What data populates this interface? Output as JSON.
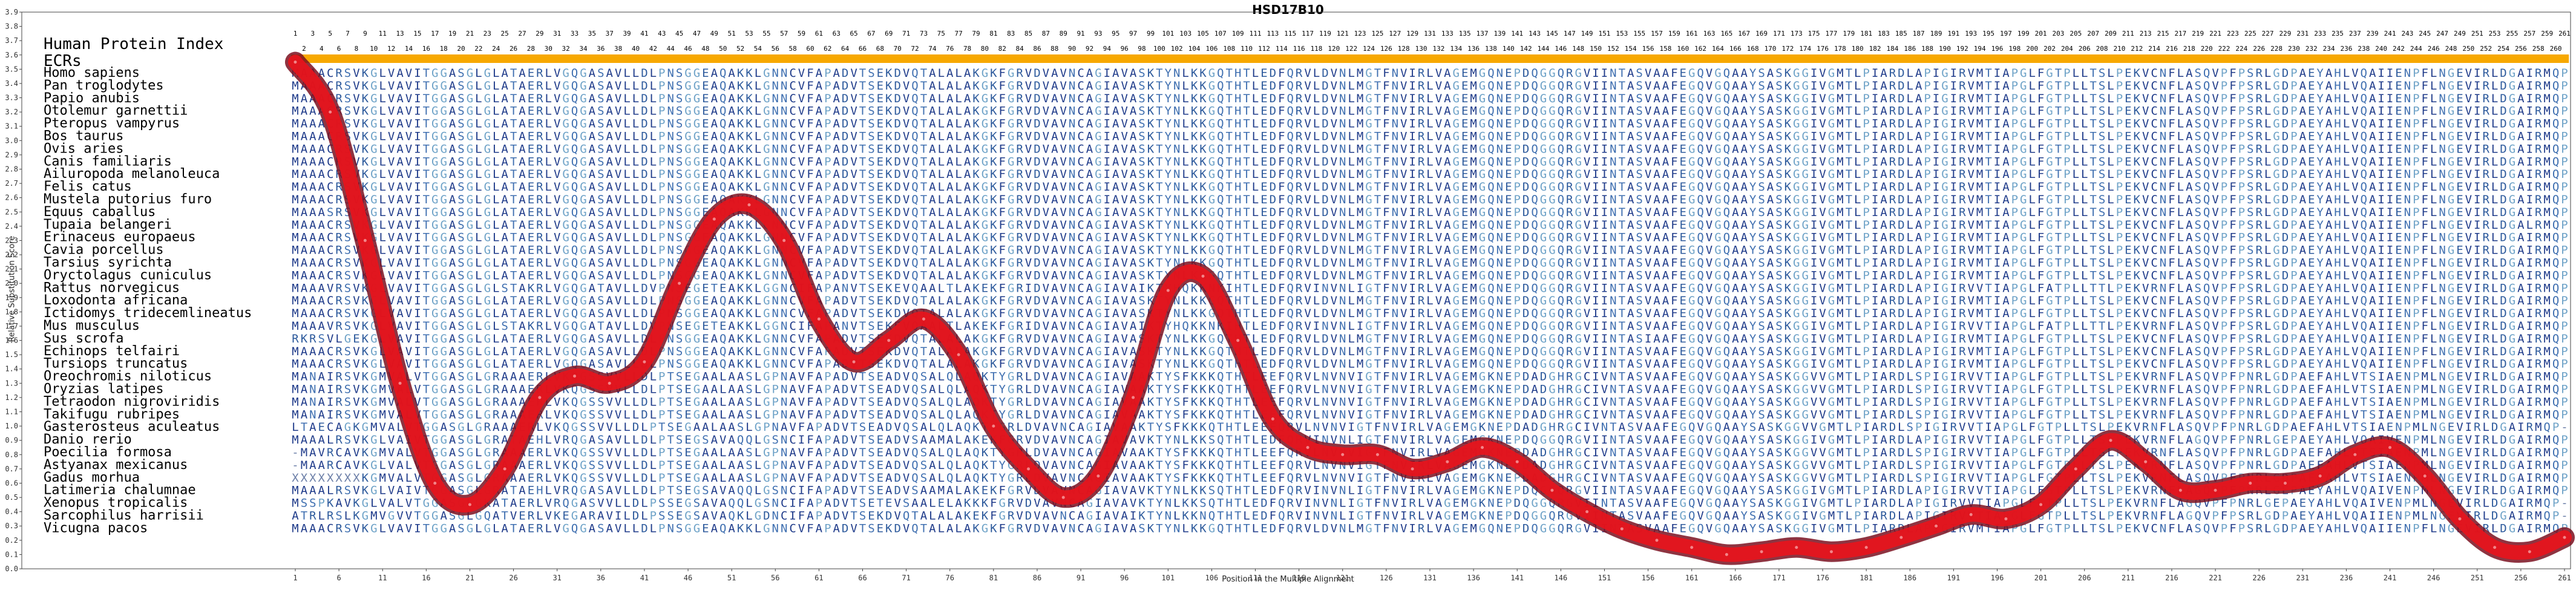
{
  "chart_data": {
    "type": "line",
    "title": "HSD17B10",
    "xlabel": "Position in the Multiple Alignment",
    "ylabel": "Relative Substitution Score",
    "xlim": [
      1,
      261
    ],
    "ylim": [
      0,
      3.9
    ],
    "yticks": [
      0.0,
      0.1,
      0.2,
      0.3,
      0.4,
      0.5,
      0.6,
      0.7,
      0.8,
      0.9,
      1.0,
      1.1,
      1.2,
      1.3,
      1.4,
      1.5,
      1.6,
      1.7,
      1.8,
      1.9,
      2.0,
      2.1,
      2.2,
      2.3,
      2.4,
      2.5,
      2.6,
      2.7,
      2.8,
      2.9,
      3.0,
      3.1,
      3.2,
      3.3,
      3.4,
      3.5,
      3.6,
      3.7,
      3.8,
      3.9
    ],
    "xticks": [
      1,
      6,
      11,
      16,
      21,
      26,
      31,
      36,
      41,
      46,
      51,
      56,
      61,
      66,
      71,
      76,
      81,
      86,
      91,
      96,
      101,
      106,
      111,
      116,
      121,
      126,
      131,
      136,
      141,
      146,
      151,
      156,
      161,
      166,
      171,
      176,
      181,
      186,
      191,
      196,
      201,
      206,
      211,
      216,
      221,
      226,
      231,
      236,
      241,
      246,
      251,
      256,
      261
    ],
    "series": [
      {
        "color": "#e8141c",
        "x": [
          1,
          5,
          9,
          13,
          17,
          21,
          25,
          29,
          33,
          37,
          41,
          45,
          49,
          53,
          57,
          61,
          65,
          69,
          73,
          77,
          81,
          85,
          89,
          93,
          97,
          101,
          105,
          109,
          113,
          117,
          121,
          125,
          129,
          133,
          137,
          141,
          145,
          149,
          153,
          157,
          161,
          165,
          169,
          173,
          177,
          181,
          185,
          189,
          193,
          197,
          201,
          205,
          209,
          213,
          217,
          221,
          225,
          229,
          233,
          237,
          241,
          245,
          249,
          253,
          257,
          261
        ],
        "y": [
          3.55,
          3.2,
          2.3,
          1.3,
          0.6,
          0.45,
          0.7,
          1.2,
          1.35,
          1.3,
          1.45,
          2.0,
          2.45,
          2.55,
          2.3,
          1.75,
          1.45,
          1.6,
          1.75,
          1.5,
          1.0,
          0.7,
          0.5,
          0.65,
          1.2,
          1.95,
          2.05,
          1.6,
          1.05,
          0.85,
          0.8,
          0.8,
          0.7,
          0.75,
          0.85,
          0.75,
          0.55,
          0.4,
          0.28,
          0.2,
          0.15,
          0.1,
          0.12,
          0.15,
          0.12,
          0.15,
          0.22,
          0.3,
          0.38,
          0.35,
          0.45,
          0.7,
          0.9,
          0.75,
          0.55,
          0.55,
          0.6,
          0.6,
          0.65,
          0.8,
          0.85,
          0.65,
          0.35,
          0.15,
          0.12,
          0.22
        ]
      }
    ]
  },
  "track_labels": {
    "hpi": "Human Protein Index",
    "ecrs": "ECRs"
  },
  "species": [
    "Homo sapiens",
    "Pan troglodytes",
    "Papio anubis",
    "Otolemur garnettii",
    "Pteropus vampyrus",
    "Bos taurus",
    "Ovis aries",
    "Canis familiaris",
    "Ailuropoda melanoleuca",
    "Felis catus",
    "Mustela putorius furo",
    "Equus caballus",
    "Tupaia belangeri",
    "Erinaceus europaeus",
    "Cavia porcellus",
    "Tarsius syrichta",
    "Oryctolagus cuniculus",
    "Rattus norvegicus",
    "Loxodonta africana",
    "Ictidomys tridecemlineatus",
    "Mus musculus",
    "Sus scrofa",
    "Echinops telfairi",
    "Tursiops truncatus",
    "Oreochromis niloticus",
    "Oryzias latipes",
    "Tetraodon nigroviridis",
    "Takifugu rubripes",
    "Gasterosteus aculeatus",
    "Danio rerio",
    "Poecilia formosa",
    "Astyanax mexicanus",
    "Gadus morhua",
    "Latimeria chalumnae",
    "Xenopus tropicalis",
    "Sarcophilus harrisii",
    "Vicugna pacos"
  ],
  "sequences": [
    "MAAACRSVKGLVAVITGGASGLGLATAERLVGQGASAVLLDLPNSGGEAQAKKLGNNCVFAPADVTSEKDVQTALALAKGKFGRVDVAVNCAGIAVASKTYNLKKGQTHTLEDFQRVLDVNLMGTFNVIRLVAGEMGQNEPDQGGQRGVIINTASVAAFEGQVGQAAYSASKGGIVGMTLPIARDLAPIGIRVMTIAPGLFGTPLLTSLPEKVCNFLASQVPFPSRLGDPAEYAHLVQAIIENPFLNGEVIRLDGAIRMQP",
    "MAAACRSVKGLVAVITGGASGLGLATAERLVGQGASAVLLDLPNSGGEAQAKKLGNNCVFAPADVTSEKDVQTALALAKGKFGRVDVAVNCAGIAVASKTYNLKKGQTHTLEDFQRVLDVNLMGTFNVIRLVAGEMGQNEPDQGGQRGVIINTASVAAFEGQVGQAAYSASKGGIVGMTLPIARDLAPIGIRVMTIAPGLFGTPLLTSLPEKVCNFLASQVPFPSRLGDPAEYAHLVQAIIENPFLNGEVIRLDGAIRMQP",
    "MAAACRSVKGLVAVITGGASGLGLATAERLVGQGASAVLLDLPNSGGEAQAKKLGNNCVFAPADVTSEKDVQTALALAKGKFGRVDVAVNCAGIAVASKTYNLKKGQTHTLEDFQRVLDVNLMGTFNVIRLVAGEMGQNEPDQGGQRGVIINTASVAAFEGQVGQAAYSASKGGIVGMTLPIARDLAPIGIRVMTIAPGLFGTPLLTSLPEKVCNFLASQVPFPSRLGDPAEYAHLVQAIIENPFLNGEVIRLDGAIRMQP",
    "MAAACRSVKGLVAVITGGASGLGLATAERLVGQGASAVLLDLPNSGGEAQAKKLGNNCVFAPADVTSEKDVQTALALAKGKFGRVDVAVNCAGIAVASKTYNLKKGQTHTLEDFQRVLDVNLMGTFNVIRLVAGEMGQNEPDQGGQRGVIINTASVAAFEGQVGQAAYSASKGGIVGMTLPIARDLAPIGIRVMTIAPGLFGTPLLTSLPEKVCNFLASQVPFPSRLGDPAEYAHLVQAIIENPFLNGEVIRLDGAIRMQP",
    "MAAACRSVKGLVAVITGGASGLGLATAERLVGQGASAVLLDLPNSGGEAQAKKLGNNCVFAPADVTSEKDVQTALALAKGKFGRVDVAVNCAGIAVASKTYNLKKGQTHTLEDFQRVLDVNLMGTFNVIRLVAGEMGQNEPDQGGQRGVIINTASVAAFEGQVGQAAYSASKGGIVGMTLPIARDLAPIGIRVMTIAPGLFGTPLLTSLPEKVCNFLASQVPFPSRLGDPAEYAHLVQAIIENPFLNGEVIRLDGAIRMQP",
    "MAAACRSVKGLVAVITGGASGLGLATAERLVGQGASAVLLDLPNSGGEAQAKKLGNNCVFAPADVTSEKDVQTALALAKGKFGRVDVAVNCAGIAVASKTYNLKKGQTHTLEDFQRVLDVNLMGTFNVIRLVAGEMGQNEPDQGGQRGVIINTASVAAFEGQVGQAAYSASKGGIVGMTLPIARDLAPIGIRVMTIAPGLFGTPLLTSLPEKVCNFLASQVPFPSRLGDPAEYAHLVQAIIENPFLNGEVIRLDGAIRMQP",
    "MAAACRSVKGLVAVITGGASGLGLATAERLVGQGASAVLLDLPNSGGEAQAKKLGNNCVFAPADVTSEKDVQTALALAKGKFGRVDVAVNCAGIAVASKTYNLKKGQTHTLEDFQRVLDVNLMGTFNVIRLVAGEMGQNEPDQGGQRGVIINTASVAAFEGQVGQAAYSASKGGIVGMTLPIARDLAPIGIRVMTIAPGLFGTPLLTSLPEKVCNFLASQVPFPSRLGDPAEYAHLVQAIIENPFLNGEVIRLDGAIRMQP",
    "MAAACRSVKGLVAVITGGASGLGLATAERLVGQGASAVLLDLPNSGGEAQAKKLGNNCVFAPADVTSEKDVQTALALAKGKFGRVDVAVNCAGIAVASKTYNLKKGQTHTLEDFQRVLDVNLMGTFNVIRLVAGEMGQNEPDQGGQRGVIINTASVAAFEGQVGQAAYSASKGGIVGMTLPIARDLAPIGIRVMTIAPGLFGTPLLTSLPEKVCNFLASQVPFPSRLGDPAEYAHLVQAIIENPFLNGEVIRLDGAIRMQP",
    "MAAACRSVKGLVAVITGGASGLGLATAERLVGQGASAVLLDLPNSGGEAQAKKLGNNCVFAPADVTSEKDVQTALALAKGKFGRVDVAVNCAGIAVASKTYNLKKGQTHTLEDFQRVLDVNLMGTFNVIRLVAGEMGQNEPDQGGQRGVIINTASVAAFEGQVGQAAYSASKGGIVGMTLPIARDLAPIGIRVMTIAPGLFGTPLLTSLPEKVCNFLASQVPFPSRLGDPAEYAHLVQAIIENPFLNGEVIRLDGAIRMQP",
    "MAAACRSVKGLVAVITGGASGLGLATAERLVGQGASAVLLDLPNSGGEAQAKKLGNNCVFAPADVTSEKDVQTALALAKGKFGRVDVAVNCAGIAVASKTYNLKKGQTHTLEDFQRVLDVNLMGTFNVIRLVAGEMGQNEPDQGGQRGVIINTASVAAFEGQVGQAAYSASKGGIVGMTLPIARDLAPIGIRVMTIAPGLFGTPLLTSLPEKVCNFLASQVPFPSRLGDPAEYAHLVQAIIENPFLNGEVIRLDGAIRMQP",
    "MAAACRSVKGLVAVITGGASGLGLATAERLVGQGASAVLLDLPNSGGEAQAKKLGNNCVFAPADVTSEKDVQTALALAKGKFGRVDVAVNCAGIAVASKTYNLKKGQTHTLEDFQRVLDVNLMGTFNVIRLVAGEMGQNEPDQGGQRGVIINTASVAAFEGQVGQAAYSASKGGIVGMTLPIARDLAPIGIRVMTIAPGLFGTPLLTSLPEKVCNFLASQVPFPSRLGDPAEYAHLVQAIIENPFLNGEVIRLDGAIRMQP",
    "MAAASRSVKGLVAVITGGASGLGLATAERLVGQGASAVLLDLPNSGGEAQAKKLGNNCVFAPADVTSEKDVQTALALAKGKFGRVDVAVNCAGIAVASKTYNLKKGQTHTLEDFQRVLDVNLMGTFNVIRLVAGEMGQNEPDQGGQRGVIINTASVAAFEGQVGQAAYSASKGGIVGMTLPIARDLAPIGIRVMTIAPGLFGTPLLTSLPEKVCNFLASQVPFPSRLGDPAEYAHLVQAIIENPFLNGEVIRLDGAIRMQP",
    "MAAACRSVKGLVAVITGGASGLGLATAERLVGQGASAVLLDLPNSGGEAQAKKLGNNCVFAPADVTSEKDVQTALALAKGKFGRVDVAVNCAGIAVASKTYNLKKGQTHTLEDFQRVLDVNLMGTFNVIRLVAGEMGQNEPDQGGQRGVIINTASVAAFEGQVGQAAYSASKGGIVGMTLPIARDLAPIGIRVMTIAPGLFGTPLLTSLPEKVCNFLASQVPFPSRLGDPAEYAHLVQAIIENPFLNGEVIRLDGALRMQP",
    "MAAACRSVKGLVAVITGGASGLGLATAERLVGQGASAVLLDLPNSGGEAQAKKLGNNCVFAPADVTSEKDVQTALALAKGKFGRVDVAVNCAGIAVASKTYNLKKGQTHTLEDFQRVLDVNLMGTFNVIRLVAGEMGQNEPDQGGQRGVIINTASVAAFEGQVGQAAYSASKGGIVGMTLPIARDLAPIGIRVMTIAPGLFGTPLLTSLPEKVCNFLASQVPFPSRLGDPAEYAHLVQAIIENPFLNGEVIRLDGAIRMQP",
    "MAAACRSVKGLVAVITGGASGLGLATAERLVGQGASAVLLDLPNSGGEAQAKKLGNNCVFAPADVTSEKDVQTALALAKGKFGRVDVAVNCAGIAVASKTYNLKKGQTHTLEDFQRVLDVNLMGTFNVIRLVAGEMGQNEPDQGGQRGVIINTASVAAFEGQVGQAAYSASKGGIVGMTLPIARDLAPIGIRVMTIAPGLFGTPLLTSLPEKVCNFLASQVPFPSRLGDPAEYAHLVQAIIENPFLNGEVIRLDGAIRMQP",
    "MAAACRSVKGLVAVITGGASGLGLATAERLVGQGASAVLLDLPNSGGEAQAKKLGNNCVFAPADVTSEKDVQTALALAKGKFGRVDVAVNCAGIAVASKTYNLKKGQTHTLEDFQRVLDVNLMGTFNVIRLVAGEMGQNEPDQGGQRGVIINTASVAAFEGQVGQAAYSASKGGIVGMTLPIARDLAPIGIRVMTIAPGLFGTPLLTSLPEKVCNFLASQVPFPSRLGDPAEYAHLVQAIIENPFLNGEVIRLDGAIRMQP",
    "MAAACRSVKGLVAVITGGASGLGLATAERLVGQGASAVLLDLPNSGGEAQAKKLGNNCVFAPADVTSEKDVQTALALAKGKFGRVDVAVNCAGIAVASKTYNLKKGQTHTLEDFQRVLDVNLMGTFNVIRLVAGEMGQNEPDQGGQRGVIINTASVAAFEGQVGQAAYSASKGGIVGMTLPIARDLAPIGIRVMTIAPGLFGTPLLTSLPEKVCNFLASQVPFPSRLGDPAEYAHLVQAIIENPFLNGEVIRLDGAIRMQP",
    "MAAAVRSVKGLVAVITGGASGLGLSTAKRLVGQGATAVLLDVPNSEGETEAKKLGGNCIFAPANVTSEKEVQAALTLAKEKFGRIDVAVNCAGIAVAIKTYHQKKNKIHTLEDFQRVINVNLIGTFNVIRLVAGEMGQNEPDQGGQRGVIINTASVAAFEGQVGQAAYSASKGGIVGMTLPIARDLAPIGIRVVTIAPGLFATPLLTTLPEKVRNFLASQVPFPSRLGDPAEYAHLVQAIIENPFLNGEVIRLDGAIRMQP",
    "MAAACRSVKGLVAVITGGASGLGLATAERLVGQGASAVLLDLPNSGGEAQAKKLGNNCVFAPADVTSEKDVQTALALAKGKFGRVDVAVNCAGIAVASKTYNLKKGQTHTLEDFQRVLDVNLMGTFNVIRLVAGEMGQNEPDQGGQRGVIINTASVAAFEGQVGQAAYSASKGGIVGMTLPIARDLAPIGIRVMTIAPGLFGTPLLTSLPEKVCNFLASQVPFPSRLGDPAEYAHLVQAIIENPFLNGEVIRLDGAIRMQP",
    "MAAACRSVKGLVAVITGGASGLGLATAERLVGQGASAVLLDLPNSGGEAQAKKLGNNCVFAPADVTSEKDVQTALALAKGKFGRVDVAVNCAGIAVASKTYNLKKGQTHTLEDFQRVLDVNLMGTFNVIRLVAGEMGQNEPDQGGQRGVIINTASVAAFEGQVGQAAYSASKGGIVGMTLPIARDLAPIGIRVMTIAPGLFGTPLLTSLPEKVCNFLASQVPFPSRLGDPAEYAHLVQAIIENPFLNGEVIRLDGAIRMQP",
    "MAAAVRSVKGLVAVITGGASGLGLSTAKRLVGQGATAVLLDVPNSEGETEAKKLGGNCIFAPANVTSEKEVQAALTLAKEKFGRIDVAVNCAGIAVAIKTYHQKKNKIHTLEDFQRVINVNLIGTFNVIRLVAGEMGQNEPDQGGQRGVIINTASVAAFEGQVGQAAYSASKGGIVGMTLPIARDLAPIGIRVVTIAPGLFATPLLTTLPEKVRNFLASQVPFPSRLGDPAEYAHLVQAIIENPFLNGEVIRLDGAIRMQP",
    "RKRSVLGEKGLVAVITGGASGLGLATAERLVGQGASAVLLDLPNSGGEAQAKKLGNNCVFAPADVTSEKDVQTALALAKGKFGRVDVAVNCAGIAVASKTYNLKKGQTHTLEDFQRVLDVNLMGTFNVIRLVAGEMGQNEPDQGGQRGVIINTASIAAFEGQVGQAAYSASKGGIVGMTLPIARDLAPIGIRVMTIAPGLFGTPLLTSLPEKVCNFLASQVPFPSRLGDPAEYAHLVQAIIENPFLNGEVIRLDGAIRMQP",
    "MAAACRSVKGLVAVITGGASGLGLATAERLVGQGASAVLLDLPNSGGEAQAKKLGNNCVFAPADVTSEKDVQTALALAKGKFGRVDVAVNCAGIAVASKTYNLKKGQTHTLEDFQRVLDVNLMGTFNVIRLVAGEMGQNEPDQGGQRGVIINTASVAAFEGQVGQAAYSASKGGIVGMTLPIARDLAPIGIRVMTIAPGLFGTPLLTSLPEKVCNFLASQVPFPSRLGDPAEYAHLVQAIIENPFLNGEVIRLDGAIRMQP",
    "MAAACRSVKGLVAVITGGASGLGLATAERLVGQGASAVLLDLPNSGGEAQAKKLGNNCVFAPADVTSEKDVQTALALAKGKFGRVDVAVNCAGIAVASKTYNLKKGQTHTLEDFQRVLDVNLMGTFNVIRLVAGEMGQNEPDQGGQRGVIINTASVAAFEGQVGQAAYSASKGGIVGMTLPIARDLAPIGIRVMTIAPGLFGTPLLTSLPEKVCNFLASQVPFPSRLGDPAEYAHLVQAIIENPFLNGEVIRLDGAIRMQP",
    "MANAIRSVKGMVALVTGGASGLGRAAAERLVKQGSSVVLLDLPTSEGAALAASLGPNAVFAPADVTSEADVQSALQLAQKTYGRLDVAVNCAGIAVAAKTYSFKKKQTHTLEEFQRVLNVNVIGTFNVIRLVAGEMGKNEPDADGHRGCIVNTASVAAFEGQVGQAAYSASKGGVVGMTLPIARDLSPIGIRVVTIAPGLFGTPLLTSLPEKVRNFLASQVPFPNRLGDPAEFAHLVTSIAENPMLNGEVIRLDGAIRMQP",
    "MANAIRSVKGMVALVTGGASGLGRAAAERLVKQGSSVVLLDLPTSEGAALAASLGPNAVFAPADVTSEADVQSALQLAQKTYGRLDVAVNCAGIAVAAKTYSFKKKQTHTLEEFQRVLNVNVIGTFNVIRLVAGEMGKNEPDADGHRGCIVNTASVAAFEGQVGQAAYSASKGGVVGMTLPIARDLSPIGIRVVTIAPGLFGTPLLTSLPEKVRNFLASQVPFPNRLGDPAEFAHLVTSIAENPMLNGEVIRLDGAIRMQP",
    "MANAIRSVKGMVALVTGGASGLGRAAAERLVKQGSSVVLLDLPTSEGAALAASLGPNAVFAPADVTSEADVQSALQLAQKTYGRLDVAVNCAGIAVAAKTYSFKKKQTHTLEEFQRVLNVNVIGTFNVIRLVAGEMGKNEPDADGHRGCIVNTASVAAFEGQVGQAAYSASKGGVVGMTLPIARDLSPIGIRVVTIAPGLFGTPLLTSLPEKVRNFLASQVPFPNRLGDPAEFAHLVTSIAENPMLNGEVIRLDGAIRMQP",
    "MANAIRSVKGMVALVTGGASGLGRAAAERLVKQGSSVVLLDLPTSEGAALAASLGPNAVFAPADVTSEADVQSALQLAQKTYGRLDVAVNCAGIAVAAKTYSFKKKQTHTLEEFQRVLNVNVIGTFNVIRLVAGEMGKNEPDADGHRGCIVNTASVAAFEGQVGQAAYSASKGGVVGMTLPIARDLSPIGIRVVTIAPGLFGTPLLTSLPEKVRNFLASQVPFPNRLGDPAEFAHLVTSIAENPMLNGEVIRLDGAIRMQP",
    "LTAECAGKGMVALVTGGASGLGRAAAERLVKQGSSVVLLDLPTSEGAALAASLGPNAVFAPADVTSEADVQSALQLAQKTYGRLDVAVNCAGIAVAAKTYSFKKKQTHTLEEFQRVLNVNVIGTFNVIRLVAGEMGKNEPDADGHRGCIVNTASVAAFEGQVGQAAYSASKGGVVGMTLPIARDLSPIGIRVVTIAPGLFGTPLLTSLPEKVRNFLASQVPFPNRLGDPAEFAHLVTSIAENPMLNGEVIRLDGAIRMQP",
    "MAAALRSVKGLVAIVTGGASGLGRATAEHLVRQGASAVLLDLPTSEGSAVAQQLGSNCIFAPADVTSEADVSAAMALAKEKFGRVDVAVNCAGIAVAVKTYNLKKSQTHTLEDFQRVINVNLIGTFNVIRLVAGEMGKNEPDQGGQRGVIINTASVAAFEGQVGQAAYSASKGGIVGMTLPIARDLAPIGIRVVTIAPGLFGTPLLTSLPEKVRNFLAGQVPFPNRLGEPAEYAHLVQAIVENPMLNGEVIRLDGAIRMQP",
    "-MAVRCAVKGMVALVTGGASGLGRAAAERLVKQGSSVVLLDLPTSEGAALAASLGPNAVFAPADVTSEADVQSALQLAQKTYGRLDVAVNCAGIAVAAKTYSFKKKQTHTLEEFQRVLNVNVIGTFNVIRLVAGEMGKNEPDADGHRGCIVNTASVAAFEGQVGQAAYSASKGGVVGMTLPIARDLSPIGIRVVTIAPGLFGTPLLTSLPEKVRNFLASQVPFPNRLGDPAEFAHLVTSIAENPMLNGEVIRLDGAIRMQP",
    "-MAARCAVKGLVALVTGGASGLGRAAAERLVKQGSSVVLLDLPTSEGAALAASLGPNAVFAPADVTSEADVQSALQLAQKTYGRLDVAVNCAGIAVAAKTYSFKKKQTHTLEEFQRVLNVNVIGTFNVIRLVAGEMGKNEPDADGHRGCIVNTASVAAFEGQVGQAAYSASKGGVVGMTLPIARDLSPIGIRVVTIAPGLFGTPLLTSLPEKVRNFLASQVPFPNRLGDPAEFAHLVTSIAENPMLNGEVIRLDGAIRMQP",
    "XXXXXXXXKGMVALVTGGASGLGRAAAERLVKQGSSVVLLDLPTSEGAALAASLGPNAVFAPADVTSEADVQSALQLAQKTYGRLDVAVNCAGIAVAAKTYSFKKKQTHTLEEFQRVLNVNVIGTFNVIRLVAGEMGKNEPDADGHRGCIVNTASVAAFEGQVGQAAYSASKGGVVGMTLPIARDLSPIGIRVVTIAPGLFGTPLLTSLPEKVRNFLASQVPFPNRLGDPAEFAHLVTSIAENPMLNGEVIRLDGAIRMQP",
    "MAAALRSVKGLVAIVTGGASGLGRATAEHLVRQGASAVLLDLPTSEGSAVAQQLGSNCIFAPADVTSEADVSAAMALAKEKFGRVDVAVNCAGIAVAVKTYNLKKSQTHTLEDFQRVINVNLIGTFNVIRLVAGEMGKNEPDQGGQRGVIINTASVAAFEGQVGQAAYSASKGGIVGMTLPIARDLAPIGIRVVTIAPGLFGTPLLTSLPEKVRNFLAGQVPFPNRLGEPAEYAHLVQAIVENPMLNGEVIRLDGAIRMQP",
    "MSSPKAVKGLVALVTGGASGLGKATAERLVRQGASVVLLDLPSSEGSAVAQQLGSNCIFAPADVTSETEVSAALELAKKKFGRVDVAVNCAGIAVAVKTYNLKKSQTHTLEDFQRVINVNLIGTFNVIRLVAGEMGKNEPDQGGQRGVIINTASVAAFEGQVGQAAYSASKGGIVGMTLPIARDLAPIGIRVVTIAPGLFGTPLLTSLPEKVRNFLAGQVPFPNRLGEPAEYAHLVQAIVENPMLNGEVIRLDGAIRMQP",
    "ATRLRSLKGMVGVVTGGASGLGQATVERLVKEGARAVILDLPSSEGSAVAQKLGDNCIFAPADVTSEKDVQTALALAKEKFGRVDVAVNCAGIAVAIKTYNLKKNQTHTLEDFQRVINVNLIGTFNVIRLVAGEMGKNEPDQGGQRGVIINTASVAAFEGQVGQAAYSASKGGIVGMTLPIARDLAPIGIRVVTIAPGLFGTPLLTSLPEKVRNFLAGQVPFPSRLGDPAEYAHLVQAIIENPMLNGEVIRLDGAIRMQP",
    "MAAACRSVKGLVAVITGGASGLGLATAERLVGQGASAVLLDLPNSGGEAQAKKLGNNCVFAPADVTSEKDVQTALALAKGKFGRVDVAVNCAGIAVASKTYNLKKGQTHTLEDFQRVLDVNLMGTFNVIRLVAGEMGQNEPDQGGQRGVIINTASVAAFEGQVGQAAYSASKGGIVGMTLPIARDLAPIGIRVMTIAPGLFGTPLLTSLPEKVCNFLASQVPFPSRLGDPAEYAHLVQAIIENPFLNGEVIRLDGAIRMQP"
  ]
}
